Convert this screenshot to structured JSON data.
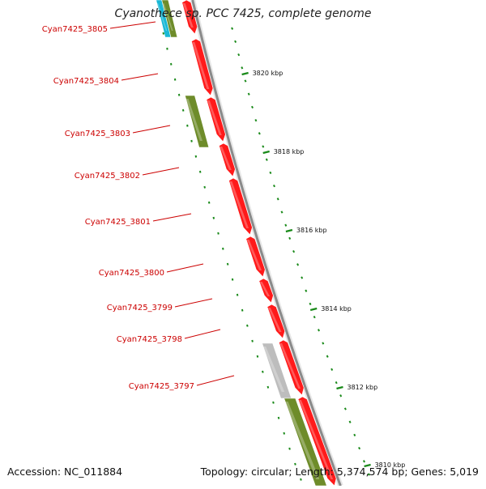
{
  "title": "Cyanothece sp. PCC 7425, complete genome",
  "footer": {
    "accession_label": "Accession:",
    "accession": "NC_011884",
    "topology_label": "Topology:",
    "topology": "circular",
    "length_label": "Length:",
    "length": "5,374,574 bp",
    "genes_label": "Genes:",
    "genes": "5,019"
  },
  "colors": {
    "gene_forward": "#ff1a1a",
    "gene_other": "#6e8c2a",
    "gene_pseudo": "#bdbdbd",
    "gene_cyan": "#19b8d6",
    "backbone": "#8a8a8a",
    "tick": "#1a8a1a",
    "label": "#cc0000"
  },
  "scale_ticks": [
    {
      "label": "3820 kbp"
    },
    {
      "label": "3818 kbp"
    },
    {
      "label": "3816 kbp"
    },
    {
      "label": "3814 kbp"
    },
    {
      "label": "3812 kbp"
    },
    {
      "label": "3810 kbp"
    }
  ],
  "gene_labels": [
    {
      "label": "Cyan7425_3805"
    },
    {
      "label": "Cyan7425_3804"
    },
    {
      "label": "Cyan7425_3803"
    },
    {
      "label": "Cyan7425_3802"
    },
    {
      "label": "Cyan7425_3801"
    },
    {
      "label": "Cyan7425_3800"
    },
    {
      "label": "Cyan7425_3799"
    },
    {
      "label": "Cyan7425_3798"
    },
    {
      "label": "Cyan7425_3797"
    }
  ]
}
